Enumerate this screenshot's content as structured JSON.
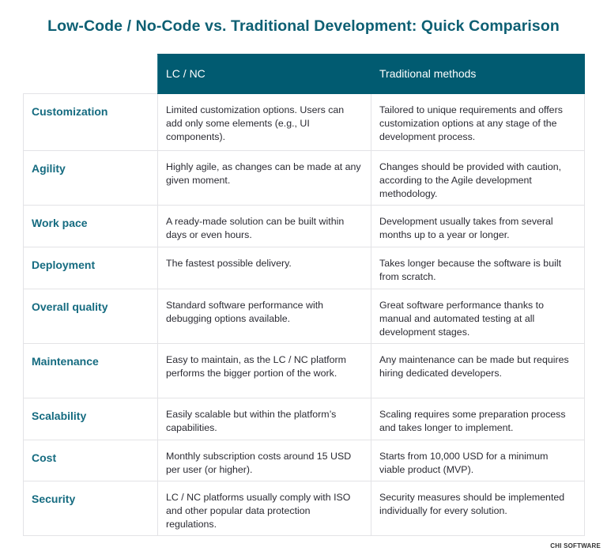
{
  "title": "Low-Code / No-Code vs. Traditional Development: Quick Comparison",
  "columns": [
    "LC / NC",
    "Traditional methods"
  ],
  "rows": [
    {
      "label": "Customization",
      "lcnc": "Limited customization options. Users can add only some elements (e.g., UI components).",
      "traditional": "Tailored to unique requirements and offers customization options at any stage of the development process."
    },
    {
      "label": "Agility",
      "lcnc": "Highly agile, as changes can be made at any given moment.",
      "traditional": "Changes should be provided with caution, according to the Agile development methodology."
    },
    {
      "label": "Work pace",
      "lcnc": "A ready-made solution can be built within days or even hours.",
      "traditional": "Development usually takes from several months up to a year or longer."
    },
    {
      "label": "Deployment",
      "lcnc": "The fastest possible delivery.",
      "traditional": "Takes longer because the software is built from scratch."
    },
    {
      "label": "Overall quality",
      "lcnc": "Standard software performance with debugging options available.",
      "traditional": "Great software performance thanks to manual and automated testing at all development stages."
    },
    {
      "label": "Maintenance",
      "lcnc": "Easy to maintain, as the LC / NC platform performs the bigger portion of the work.",
      "traditional": "Any maintenance can be made but requires hiring dedicated developers."
    },
    {
      "label": "Scalability",
      "lcnc": "Easily scalable but within the platform’s capabilities.",
      "traditional": "Scaling requires some preparation process and takes longer to implement."
    },
    {
      "label": "Cost",
      "lcnc": "Monthly subscription costs around 15 USD per user (or higher).",
      "traditional": "Starts from 10,000 USD for a minimum viable product (MVP)."
    },
    {
      "label": "Security",
      "lcnc": "LC / NC platforms usually comply with ISO and other popular data protection regulations.",
      "traditional": "Security measures should be implemented individually for every solution."
    }
  ],
  "logo": "CHI SOFTWARE",
  "colors": {
    "header_bg": "#015b71",
    "accent_text": "#156b80"
  }
}
